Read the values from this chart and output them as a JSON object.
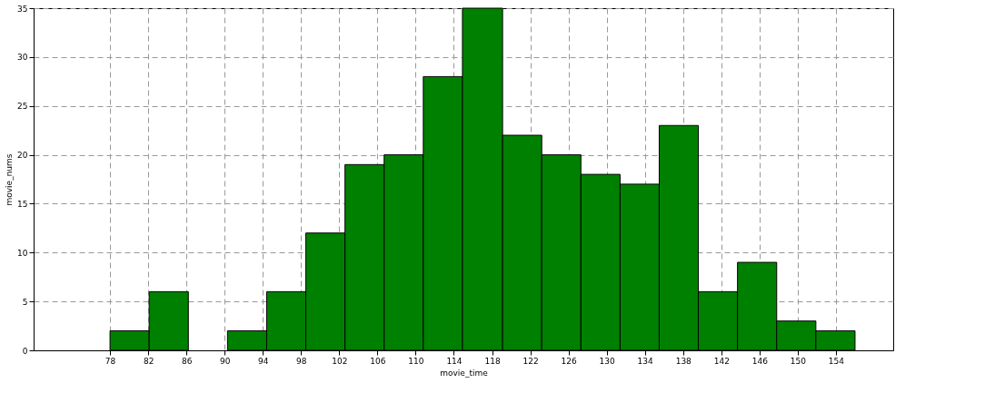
{
  "chart_data": {
    "type": "histogram",
    "xlabel": "movie_time",
    "ylabel": "movie_nums",
    "bins": [
      78,
      82.1,
      86.2,
      90.3,
      94.4,
      98.5,
      102.6,
      106.7,
      110.8,
      114.9,
      119.1,
      123.2,
      127.3,
      131.4,
      135.5,
      139.6,
      143.7,
      147.8,
      151.9,
      156
    ],
    "values": [
      2,
      6,
      0,
      2,
      6,
      12,
      19,
      20,
      28,
      35,
      22,
      20,
      18,
      17,
      23,
      6,
      9,
      3,
      2
    ],
    "color": "#008000",
    "xlim": [
      70,
      160
    ],
    "xticks": [
      78,
      82,
      86,
      90,
      94,
      98,
      102,
      106,
      110,
      114,
      118,
      122,
      126,
      130,
      134,
      138,
      142,
      146,
      150,
      154
    ],
    "ylim": [
      0,
      35
    ],
    "yticks": [
      0,
      5,
      10,
      15,
      20,
      25,
      30,
      35
    ],
    "grid": true,
    "line_style": "dashed"
  }
}
